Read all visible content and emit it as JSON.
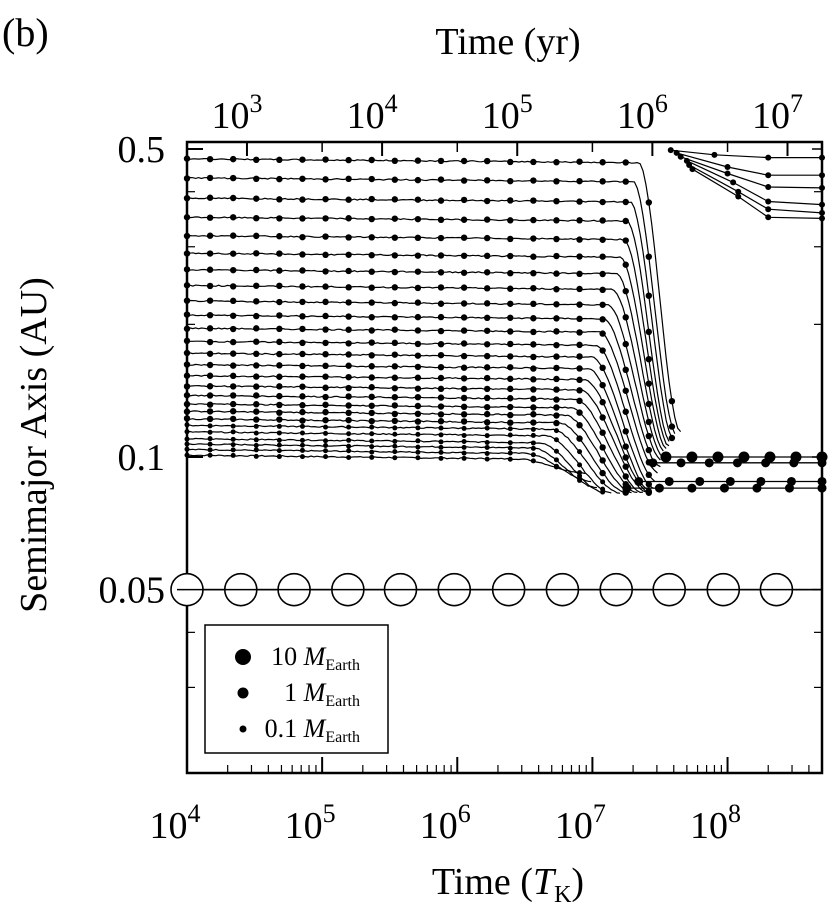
{
  "panel_label": "(b)",
  "chart_data": {
    "type": "line",
    "top_axis": {
      "label": "Time (yr)",
      "scale": "log",
      "ticks": [
        {
          "base": "10",
          "exp": "3",
          "value": 1000
        },
        {
          "base": "10",
          "exp": "4",
          "value": 10000
        },
        {
          "base": "10",
          "exp": "5",
          "value": 100000
        },
        {
          "base": "10",
          "exp": "6",
          "value": 1000000
        },
        {
          "base": "10",
          "exp": "7",
          "value": 10000000
        }
      ]
    },
    "bottom_axis": {
      "label_main": "Time (",
      "label_symbol": "T",
      "label_sub": "K",
      "label_close": ")",
      "scale": "log",
      "range": [
        10000,
        500000000
      ],
      "ticks": [
        {
          "base": "10",
          "exp": "4",
          "value": 10000
        },
        {
          "base": "10",
          "exp": "5",
          "value": 100000
        },
        {
          "base": "10",
          "exp": "6",
          "value": 1000000
        },
        {
          "base": "10",
          "exp": "7",
          "value": 10000000
        },
        {
          "base": "10",
          "exp": "8",
          "value": 100000000
        }
      ]
    },
    "y_axis": {
      "label": "Semimajor Axis (AU)",
      "scale": "log",
      "range": [
        0.02,
        0.5
      ],
      "ticks": [
        {
          "label": "0.5",
          "value": 0.5
        },
        {
          "label": "0.1",
          "value": 0.1
        },
        {
          "label": "0.05",
          "value": 0.05
        }
      ]
    },
    "legend": {
      "placement": "bottom-left",
      "items": [
        {
          "num": "10",
          "symbol": "M",
          "sub": "Earth",
          "marker_size": "large"
        },
        {
          "num": "1",
          "symbol": "M",
          "sub": "Earth",
          "marker_size": "medium"
        },
        {
          "num": "0.1",
          "symbol": "M",
          "sub": "Earth",
          "marker_size": "small"
        }
      ]
    },
    "giant_planet": {
      "a": 0.05,
      "marker": "open-circle",
      "times": [
        10000,
        25000,
        62000,
        155000,
        380000,
        950000,
        2400000,
        6000000,
        15000000,
        37000000,
        93000000,
        230000000
      ]
    },
    "migrating_series": [
      {
        "a0": 0.101,
        "t_start": 2800000,
        "t_end": 9000000,
        "a_end": 0.092
      },
      {
        "a0": 0.104,
        "t_start": 3200000,
        "t_end": 10000000,
        "a_end": 0.088
      },
      {
        "a0": 0.107,
        "t_start": 3600000,
        "t_end": 11000000,
        "a_end": 0.085
      },
      {
        "a0": 0.11,
        "t_start": 4000000,
        "t_end": 12500000,
        "a_end": 0.083
      },
      {
        "a0": 0.114,
        "t_start": 4500000,
        "t_end": 14000000,
        "a_end": 0.083
      },
      {
        "a0": 0.118,
        "t_start": 5000000,
        "t_end": 16000000,
        "a_end": 0.083
      },
      {
        "a0": 0.122,
        "t_start": 5600000,
        "t_end": 18000000,
        "a_end": 0.083
      },
      {
        "a0": 0.127,
        "t_start": 6200000,
        "t_end": 20000000,
        "a_end": 0.083
      },
      {
        "a0": 0.132,
        "t_start": 6800000,
        "t_end": 22000000,
        "a_end": 0.083
      },
      {
        "a0": 0.138,
        "t_start": 7400000,
        "t_end": 24000000,
        "a_end": 0.083
      },
      {
        "a0": 0.145,
        "t_start": 8000000,
        "t_end": 26000000,
        "a_end": 0.083
      },
      {
        "a0": 0.153,
        "t_start": 8600000,
        "t_end": 27000000,
        "a_end": 0.083
      },
      {
        "a0": 0.162,
        "t_start": 9200000,
        "t_end": 28000000,
        "a_end": 0.083
      },
      {
        "a0": 0.172,
        "t_start": 9800000,
        "t_end": 29000000,
        "a_end": 0.085
      },
      {
        "a0": 0.183,
        "t_start": 10500000,
        "t_end": 30000000,
        "a_end": 0.088
      },
      {
        "a0": 0.196,
        "t_start": 11200000,
        "t_end": 31000000,
        "a_end": 0.092
      },
      {
        "a0": 0.21,
        "t_start": 12000000,
        "t_end": 32000000,
        "a_end": 0.095
      },
      {
        "a0": 0.226,
        "t_start": 13000000,
        "t_end": 33000000,
        "a_end": 0.098
      },
      {
        "a0": 0.245,
        "t_start": 14000000,
        "t_end": 34000000,
        "a_end": 0.1
      },
      {
        "a0": 0.266,
        "t_start": 15000000,
        "t_end": 35000000,
        "a_end": 0.102
      },
      {
        "a0": 0.29,
        "t_start": 16000000,
        "t_end": 36000000,
        "a_end": 0.104
      },
      {
        "a0": 0.318,
        "t_start": 17000000,
        "t_end": 37000000,
        "a_end": 0.106
      },
      {
        "a0": 0.35,
        "t_start": 18000000,
        "t_end": 38000000,
        "a_end": 0.108
      },
      {
        "a0": 0.387,
        "t_start": 19000000,
        "t_end": 40000000,
        "a_end": 0.11
      },
      {
        "a0": 0.43,
        "t_start": 20000000,
        "t_end": 42000000,
        "a_end": 0.112
      },
      {
        "a0": 0.475,
        "t_start": 22000000,
        "t_end": 45000000,
        "a_end": 0.114
      }
    ],
    "final_survivors": [
      {
        "t_from": 35000000,
        "t_to": 500000000,
        "a": 0.1
      },
      {
        "t_from": 28000000,
        "t_to": 500000000,
        "a": 0.097
      },
      {
        "t_from": 22000000,
        "t_to": 500000000,
        "a": 0.088
      },
      {
        "t_from": 18000000,
        "t_to": 500000000,
        "a": 0.085
      }
    ],
    "outer_bodies": [
      {
        "points": [
          [
            38000000,
            0.497
          ],
          [
            80000000,
            0.485
          ],
          [
            200000000,
            0.478
          ],
          [
            500000000,
            0.478
          ]
        ]
      },
      {
        "points": [
          [
            42000000,
            0.49
          ],
          [
            100000000,
            0.455
          ],
          [
            200000000,
            0.436
          ],
          [
            500000000,
            0.436
          ]
        ]
      },
      {
        "points": [
          [
            45000000,
            0.48
          ],
          [
            100000000,
            0.44
          ],
          [
            200000000,
            0.41
          ],
          [
            500000000,
            0.408
          ]
        ]
      },
      {
        "points": [
          [
            50000000,
            0.47
          ],
          [
            110000000,
            0.42
          ],
          [
            200000000,
            0.38
          ],
          [
            500000000,
            0.374
          ]
        ]
      },
      {
        "points": [
          [
            52000000,
            0.46
          ],
          [
            120000000,
            0.4
          ],
          [
            200000000,
            0.365
          ],
          [
            500000000,
            0.358
          ]
        ]
      },
      {
        "points": [
          [
            55000000,
            0.45
          ],
          [
            120000000,
            0.39
          ],
          [
            200000000,
            0.35
          ],
          [
            500000000,
            0.348
          ]
        ]
      }
    ]
  }
}
